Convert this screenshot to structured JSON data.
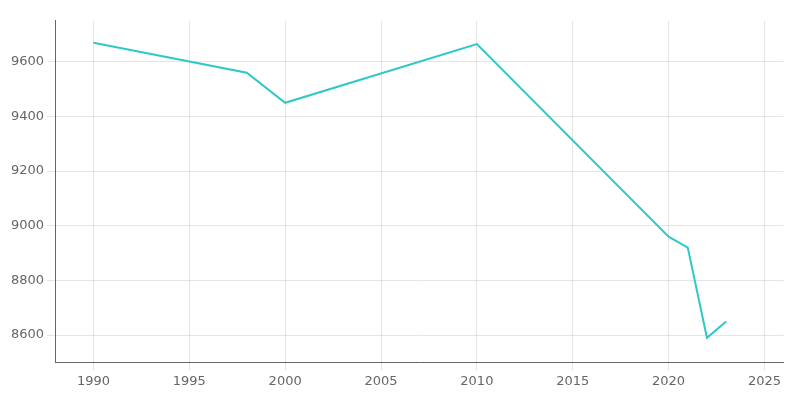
{
  "chart_data": {
    "type": "line",
    "x": [
      1990,
      1998,
      2000,
      2010,
      2020,
      2021,
      2022,
      2023
    ],
    "values": [
      9670,
      9560,
      9450,
      9665,
      8960,
      8920,
      8590,
      8650
    ],
    "color": "#2ec8c8",
    "xlim": [
      1988,
      2026
    ],
    "ylim": [
      8500,
      9750
    ],
    "xticks": [
      1990,
      1995,
      2000,
      2005,
      2010,
      2015,
      2020,
      2025
    ],
    "yticks": [
      8600,
      8800,
      9000,
      9200,
      9400,
      9600
    ],
    "grid": true
  }
}
